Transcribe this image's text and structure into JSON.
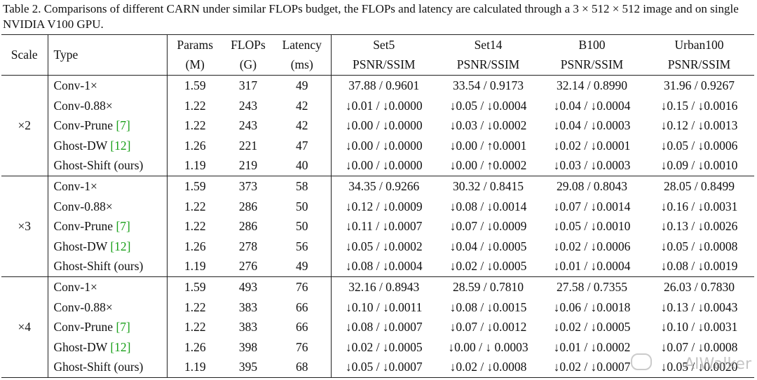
{
  "caption": "Table 2. Comparisons of different CARN under similar FLOPs budget, the FLOPs and latency are calculated through a 3 × 512 × 512 image and on single NVIDIA V100 GPU.",
  "headers": {
    "scale": "Scale",
    "type": "Type",
    "params": "Params",
    "params_unit": "(M)",
    "flops": "FLOPs",
    "flops_unit": "(G)",
    "latency": "Latency",
    "latency_unit": "(ms)",
    "datasets": [
      "Set5",
      "Set14",
      "B100",
      "Urban100"
    ],
    "metric": "PSNR/SSIM"
  },
  "groups": [
    {
      "scale": "×2",
      "rows": [
        {
          "type": "Conv-1×",
          "cite": "",
          "params": "1.59",
          "flops": "317",
          "latency": "49",
          "vals": [
            "37.88 / 0.9601",
            "33.54 / 0.9173",
            "32.14 / 0.8990",
            "31.96 / 0.9267"
          ]
        },
        {
          "type": "Conv-0.88×",
          "cite": "",
          "params": "1.22",
          "flops": "243",
          "latency": "42",
          "vals": [
            "↓0.01 / ↓0.0000",
            "↓0.05 / ↓0.0004",
            "↓0.04 / ↓0.0004",
            "↓0.15 / ↓0.0016"
          ]
        },
        {
          "type": "Conv-Prune ",
          "cite": "[7]",
          "params": "1.22",
          "flops": "243",
          "latency": "42",
          "vals": [
            "↓0.00 / ↓0.0000",
            "↓0.03 / ↓0.0002",
            "↓0.04 / ↓0.0003",
            "↓0.12 / ↓0.0013"
          ]
        },
        {
          "type": "Ghost-DW ",
          "cite": "[12]",
          "params": "1.26",
          "flops": "221",
          "latency": "47",
          "vals": [
            "↓0.00 / ↓0.0000",
            "↓0.00 / ↑0.0001",
            "↓0.02 / ↓0.0001",
            "↓0.05 / ↓0.0006"
          ]
        },
        {
          "type": "Ghost-Shift (ours)",
          "cite": "",
          "params": "1.19",
          "flops": "219",
          "latency": "40",
          "vals": [
            "↓0.00 / ↓0.0000",
            "↓0.00 / ↑0.0002",
            "↓0.03 / ↓0.0003",
            "↓0.09 / ↓0.0010"
          ]
        }
      ]
    },
    {
      "scale": "×3",
      "rows": [
        {
          "type": "Conv-1×",
          "cite": "",
          "params": "1.59",
          "flops": "373",
          "latency": "58",
          "vals": [
            "34.35 / 0.9266",
            "30.32 / 0.8415",
            "29.08 / 0.8043",
            "28.05 / 0.8499"
          ]
        },
        {
          "type": "Conv-0.88×",
          "cite": "",
          "params": "1.22",
          "flops": "286",
          "latency": "50",
          "vals": [
            "↓0.12 / ↓0.0009",
            "↓0.08 / ↓0.0014",
            "↓0.07 / ↓0.0014",
            "↓0.16 / ↓0.0031"
          ]
        },
        {
          "type": "Conv-Prune ",
          "cite": "[7]",
          "params": "1.22",
          "flops": "286",
          "latency": "50",
          "vals": [
            "↓0.11 / ↓0.0007",
            "↓0.07 / ↓0.0009",
            "↓0.05 / ↓0.0010",
            "↓0.13 / ↓0.0026"
          ]
        },
        {
          "type": "Ghost-DW ",
          "cite": "[12]",
          "params": "1.26",
          "flops": "278",
          "latency": "56",
          "vals": [
            "↓0.05 / ↓0.0002",
            "↓0.04 / ↓0.0005",
            "↓0.02 / ↓0.0006",
            "↓0.05 / ↓0.0008"
          ]
        },
        {
          "type": "Ghost-Shift (ours)",
          "cite": "",
          "params": "1.19",
          "flops": "276",
          "latency": "49",
          "vals": [
            "↓0.08 / ↓0.0004",
            "↓0.02 / ↓0.0005",
            "↓0.01 / ↓0.0004",
            "↓0.08 / ↓0.0019"
          ]
        }
      ]
    },
    {
      "scale": "×4",
      "rows": [
        {
          "type": "Conv-1×",
          "cite": "",
          "params": "1.59",
          "flops": "493",
          "latency": "76",
          "vals": [
            "32.16 / 0.8943",
            "28.59 / 0.7810",
            "27.58 / 0.7355",
            "26.03 / 0.7830"
          ]
        },
        {
          "type": "Conv-0.88×",
          "cite": "",
          "params": "1.22",
          "flops": "383",
          "latency": "66",
          "vals": [
            "↓0.10 / ↓0.0011",
            "↓0.08 / ↓0.0015",
            "↓0.06 / ↓0.0018",
            "↓0.13 / ↓0.0043"
          ]
        },
        {
          "type": "Conv-Prune ",
          "cite": "[7]",
          "params": "1.22",
          "flops": "383",
          "latency": "66",
          "vals": [
            "↓0.08 / ↓0.0007",
            "↓0.07 / ↓0.0012",
            "↓0.02 / ↓0.0005",
            "↓0.10 / ↓0.0031"
          ]
        },
        {
          "type": "Ghost-DW ",
          "cite": "[12]",
          "params": "1.26",
          "flops": "398",
          "latency": "76",
          "vals": [
            "↓0.02 / ↓0.0005",
            "↓0.00 / ↓ 0.0003",
            "↓0.01 / ↓0.0002",
            "↓0.07 / ↓0.0008"
          ]
        },
        {
          "type": "Ghost-Shift (ours)",
          "cite": "",
          "params": "1.19",
          "flops": "395",
          "latency": "68",
          "vals": [
            "↓0.05 / ↓0.0007",
            "↓0.02 / ↓0.0008",
            "↓0.02 / ↓0.0007",
            "↓0.05 / ↓0.0020"
          ]
        }
      ]
    }
  ],
  "watermark": "AIWalker",
  "colors": {
    "citation": "#1aa01a"
  }
}
